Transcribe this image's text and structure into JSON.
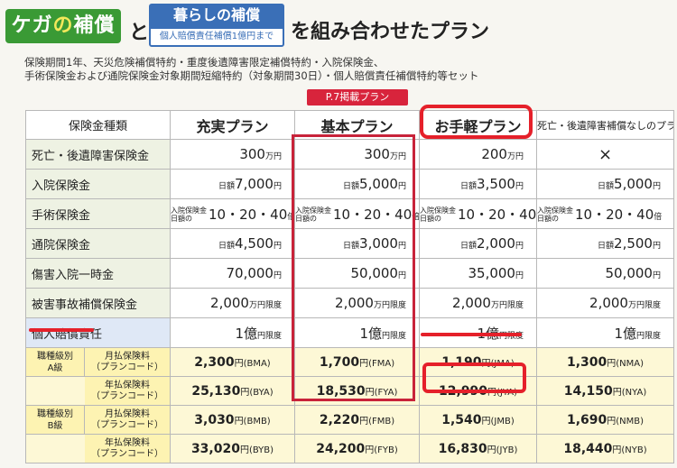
{
  "header": {
    "badge_left_a": "ケガ",
    "badge_left_b": "の",
    "badge_left_c": "補償",
    "conj": "と",
    "badge_right_title": "暮らしの補償",
    "badge_right_sub": "個人賠償責任補償1億円まで",
    "tail": "を組み合わせたプラン"
  },
  "description": {
    "line1": "保険期間1年、天災危険補償特約・重度後遺障害限定補償特約・入院保険金、",
    "line2": "手術保険金および通院保険金対象期間短縮特約（対象期間30日）・個人賠償責任補償特約等セット"
  },
  "tag": "P.7掲載プラン",
  "columns": {
    "label": "保険金種類",
    "plans": [
      "充実プラン",
      "基本プラン",
      "お手軽プラン",
      "死亡・後遺障害補償なしのプラン"
    ]
  },
  "rows": [
    {
      "label": "死亡・後遺障害保険金",
      "cells": [
        {
          "num": "300",
          "unit": "万円"
        },
        {
          "num": "300",
          "unit": "万円"
        },
        {
          "num": "200",
          "unit": "万円"
        },
        {
          "cross": "×"
        }
      ]
    },
    {
      "label": "入院保険金",
      "cells": [
        {
          "pre": "日額",
          "num": "7,000",
          "unit": "円"
        },
        {
          "pre": "日額",
          "num": "5,000",
          "unit": "円"
        },
        {
          "pre": "日額",
          "num": "3,500",
          "unit": "円"
        },
        {
          "pre": "日額",
          "num": "5,000",
          "unit": "円"
        }
      ]
    },
    {
      "label": "手術保険金",
      "cells": [
        {
          "pre2a": "入院保険金",
          "pre2b": "日額の",
          "num": "10・20・40",
          "unit": "倍"
        },
        {
          "pre2a": "入院保険金",
          "pre2b": "日額の",
          "num": "10・20・40",
          "unit": "倍"
        },
        {
          "pre2a": "入院保険金",
          "pre2b": "日額の",
          "num": "10・20・40",
          "unit": "倍"
        },
        {
          "pre2a": "入院保険金",
          "pre2b": "日額の",
          "num": "10・20・40",
          "unit": "倍"
        }
      ]
    },
    {
      "label": "通院保険金",
      "cells": [
        {
          "pre": "日額",
          "num": "4,500",
          "unit": "円"
        },
        {
          "pre": "日額",
          "num": "3,000",
          "unit": "円"
        },
        {
          "pre": "日額",
          "num": "2,000",
          "unit": "円"
        },
        {
          "pre": "日額",
          "num": "2,500",
          "unit": "円"
        }
      ]
    },
    {
      "label": "傷害入院一時金",
      "cells": [
        {
          "num": "70,000",
          "unit": "円"
        },
        {
          "num": "50,000",
          "unit": "円"
        },
        {
          "num": "35,000",
          "unit": "円"
        },
        {
          "num": "50,000",
          "unit": "円"
        }
      ]
    },
    {
      "label": "被害事故補償保険金",
      "cells": [
        {
          "num": "2,000",
          "unit": "万円限度"
        },
        {
          "num": "2,000",
          "unit": "万円限度"
        },
        {
          "num": "2,000",
          "unit": "万円限度"
        },
        {
          "num": "2,000",
          "unit": "万円限度"
        }
      ]
    },
    {
      "label": "個人賠償責任",
      "cells": [
        {
          "num": "1億",
          "unit": "円限度"
        },
        {
          "num": "1億",
          "unit": "円限度"
        },
        {
          "num": "1億",
          "unit": "円限度"
        },
        {
          "num": "1億",
          "unit": "円限度"
        }
      ]
    }
  ],
  "premiums": {
    "groupA_1": "職種級別",
    "groupA_2": "A級",
    "groupB_1": "職種級別",
    "groupB_2": "B級",
    "monthly_1": "月払保険料",
    "annual_1": "年払保険料",
    "code": "（プランコード）",
    "a_monthly": [
      {
        "v": "2,300",
        "c": "円(BMA)"
      },
      {
        "v": "1,700",
        "c": "円(FMA)"
      },
      {
        "v": "1,190",
        "c": "円(JMA)"
      },
      {
        "v": "1,300",
        "c": "円(NMA)"
      }
    ],
    "a_annual": [
      {
        "v": "25,130",
        "c": "円(BYA)"
      },
      {
        "v": "18,530",
        "c": "円(FYA)"
      },
      {
        "v": "12,990",
        "c": "円(JYA)"
      },
      {
        "v": "14,150",
        "c": "円(NYA)"
      }
    ],
    "b_monthly": [
      {
        "v": "3,030",
        "c": "円(BMB)"
      },
      {
        "v": "2,220",
        "c": "円(FMB)"
      },
      {
        "v": "1,540",
        "c": "円(JMB)"
      },
      {
        "v": "1,690",
        "c": "円(NMB)"
      }
    ],
    "b_annual": [
      {
        "v": "33,020",
        "c": "円(BYB)"
      },
      {
        "v": "24,200",
        "c": "円(FYB)"
      },
      {
        "v": "16,830",
        "c": "円(JYB)"
      },
      {
        "v": "18,440",
        "c": "円(NYB)"
      }
    ]
  },
  "colors": {
    "accent_red": "#e5202a",
    "frame_red": "#c8233a",
    "green": "#3a9a35",
    "blue": "#3a6fb7"
  }
}
